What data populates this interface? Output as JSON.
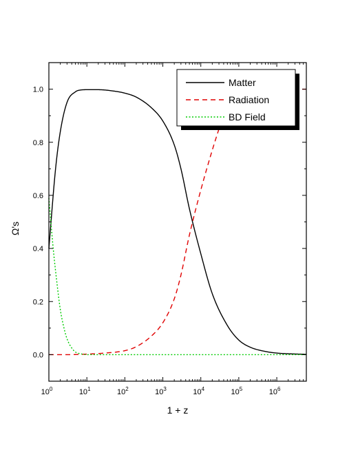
{
  "chart_data": {
    "type": "line",
    "xlabel": "1 + z",
    "ylabel": "Ω's",
    "xscale": "log",
    "xlim": [
      1,
      6000000
    ],
    "ylim": [
      -0.1,
      1.1
    ],
    "x_ticks": [
      {
        "value": 1,
        "base": "10",
        "exp": "0"
      },
      {
        "value": 10,
        "base": "10",
        "exp": "1"
      },
      {
        "value": 100,
        "base": "10",
        "exp": "2"
      },
      {
        "value": 1000,
        "base": "10",
        "exp": "3"
      },
      {
        "value": 10000,
        "base": "10",
        "exp": "4"
      },
      {
        "value": 100000,
        "base": "10",
        "exp": "5"
      },
      {
        "value": 1000000,
        "base": "10",
        "exp": "6"
      }
    ],
    "y_ticks": [
      {
        "value": 0.0,
        "label": "0.0"
      },
      {
        "value": 0.2,
        "label": "0.2"
      },
      {
        "value": 0.4,
        "label": "0.4"
      },
      {
        "value": 0.6,
        "label": "0.6"
      },
      {
        "value": 0.8,
        "label": "0.8"
      },
      {
        "value": 1.0,
        "label": "1.0"
      }
    ],
    "grid": false,
    "legend_position": "top-right",
    "series": [
      {
        "name": "Matter",
        "color": "#000000",
        "dash": "solid",
        "x": [
          1,
          1.5,
          2,
          3,
          5,
          7,
          10,
          20,
          50,
          100,
          200,
          500,
          1000,
          2000,
          3000,
          5000,
          10000,
          20000,
          50000,
          100000,
          200000,
          500000,
          1000000,
          6000000
        ],
        "y": [
          0.4,
          0.7,
          0.84,
          0.95,
          0.99,
          0.997,
          0.998,
          0.998,
          0.993,
          0.985,
          0.97,
          0.93,
          0.88,
          0.79,
          0.7,
          0.55,
          0.38,
          0.23,
          0.11,
          0.055,
          0.028,
          0.012,
          0.006,
          0.001
        ]
      },
      {
        "name": "Radiation",
        "color": "#e00000",
        "dash": "dashed",
        "x": [
          1,
          3,
          10,
          30,
          100,
          200,
          500,
          1000,
          2000,
          3000,
          5000,
          10000,
          20000,
          30000
        ],
        "y": [
          0.0,
          0.0,
          0.002,
          0.006,
          0.015,
          0.03,
          0.07,
          0.12,
          0.21,
          0.3,
          0.45,
          0.62,
          0.77,
          0.85
        ]
      },
      {
        "name": "BD Field",
        "color": "#00cc00",
        "dash": "dotted",
        "x": [
          1,
          1.3,
          1.6,
          2,
          2.5,
          3,
          4,
          5,
          7,
          10,
          100,
          1000,
          10000,
          100000,
          1000000,
          6000000
        ],
        "y": [
          0.59,
          0.4,
          0.28,
          0.17,
          0.1,
          0.06,
          0.025,
          0.01,
          0.003,
          0.0,
          0.0,
          0.0,
          0.0,
          0.0,
          0.0,
          0.0
        ]
      }
    ],
    "annotations": [
      {
        "series": "Radiation",
        "x": 6000000,
        "y": 1.0,
        "marker": "short red dash at right edge"
      }
    ]
  }
}
